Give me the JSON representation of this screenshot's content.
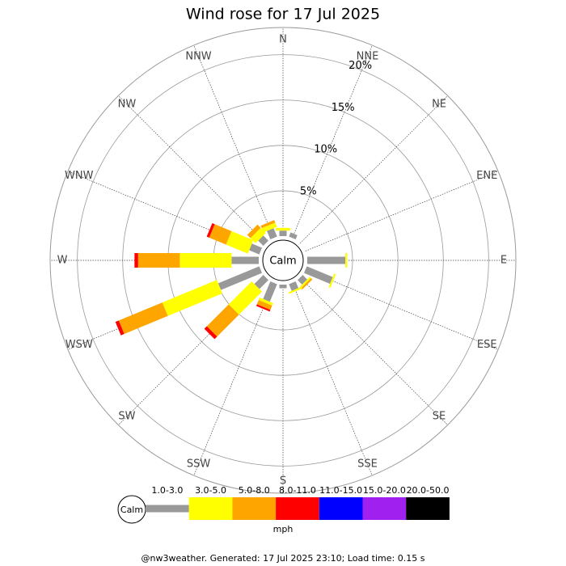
{
  "chart_data": {
    "type": "wind_rose",
    "title": "Wind rose for 17 Jul 2025",
    "categories": [
      "N",
      "NNE",
      "NE",
      "ENE",
      "E",
      "ESE",
      "SE",
      "SSE",
      "S",
      "SSW",
      "SW",
      "WSW",
      "W",
      "WNW",
      "NW",
      "NNW"
    ],
    "rlim": [
      0,
      23
    ],
    "rticks": [
      {
        "value": 5,
        "label": "5%"
      },
      {
        "value": 10,
        "label": "10%"
      },
      {
        "value": 15,
        "label": "15%"
      },
      {
        "value": 20,
        "label": "20%"
      }
    ],
    "calm_label": "Calm",
    "unit": "mph",
    "series": [
      {
        "name": "1.0-3.0",
        "color": "#999999",
        "values": [
          0.6,
          0.5,
          0,
          0,
          4.2,
          3.1,
          0.7,
          0.8,
          0.4,
          2.1,
          1.4,
          4.9,
          3.0,
          1.2,
          0.8,
          1.0
        ]
      },
      {
        "name": "3.0-5.0",
        "color": "#ffff00",
        "values": [
          0.3,
          0,
          0,
          0,
          0.2,
          0.2,
          0.2,
          0.2,
          0,
          0.3,
          3.6,
          6.5,
          5.7,
          2.6,
          0.8,
          0.5
        ]
      },
      {
        "name": "5.0-8.0",
        "color": "#ffa500",
        "values": [
          0,
          0,
          0,
          0,
          0,
          0,
          0.2,
          0,
          0,
          0.5,
          3.4,
          5.2,
          4.6,
          2.0,
          0.5,
          0.3
        ]
      },
      {
        "name": "8.0-11.0",
        "color": "#ff0000",
        "values": [
          0,
          0,
          0,
          0,
          0,
          0,
          0,
          0,
          0,
          0.2,
          0.4,
          0.4,
          0.4,
          0.3,
          0,
          0
        ]
      },
      {
        "name": "11.0-15.0",
        "color": "#0000ff",
        "values": [
          0,
          0,
          0,
          0,
          0,
          0,
          0,
          0,
          0,
          0,
          0,
          0,
          0,
          0,
          0,
          0
        ]
      },
      {
        "name": "15.0-20.0",
        "color": "#a020f0",
        "values": [
          0,
          0,
          0,
          0,
          0,
          0,
          0,
          0,
          0,
          0,
          0,
          0,
          0,
          0,
          0,
          0
        ]
      },
      {
        "name": "20.0-50.0",
        "color": "#000000",
        "values": [
          0,
          0,
          0,
          0,
          0,
          0,
          0,
          0,
          0,
          0,
          0,
          0,
          0,
          0,
          0,
          0
        ]
      }
    ],
    "footer": "@nw3weather. Generated: 17 Jul 2025 23:10; Load time: 0.15 s"
  }
}
